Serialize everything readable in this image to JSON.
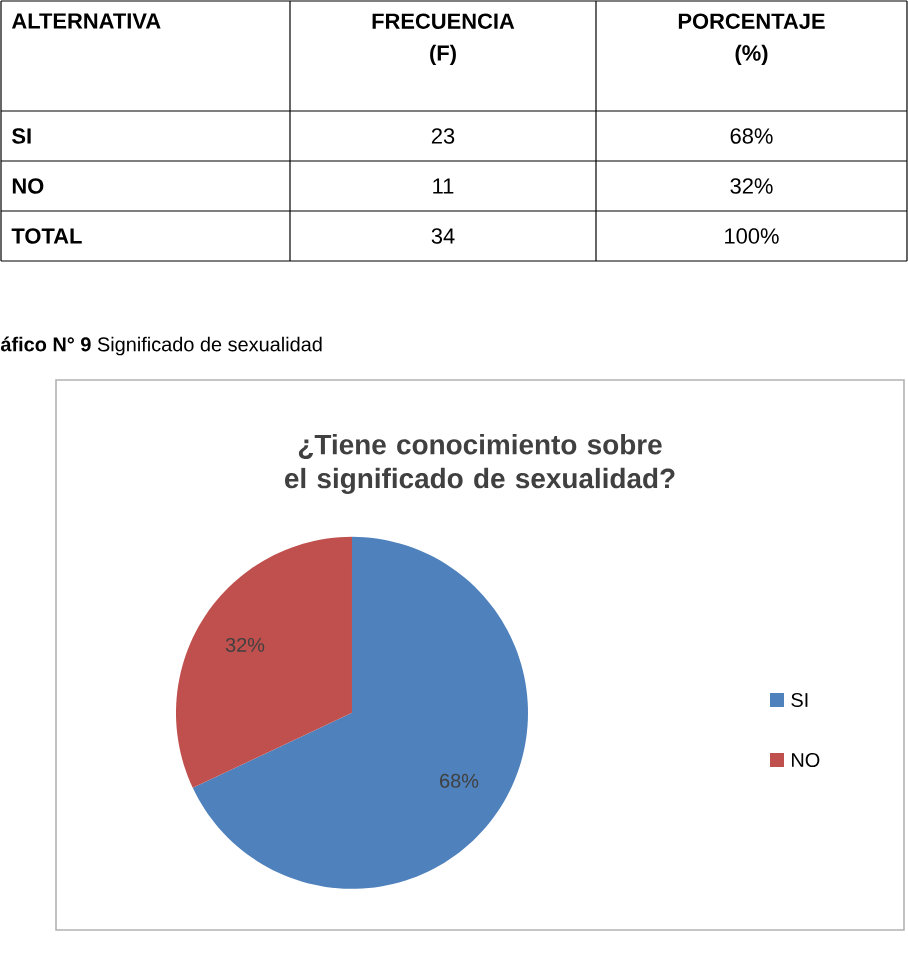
{
  "chart_data": {
    "type": "pie",
    "title": "¿Tiene conocimiento sobre el significado de sexualidad?",
    "categories": [
      "SI",
      "NO"
    ],
    "values": [
      68,
      32
    ],
    "colors": [
      "#4f81bd",
      "#c0504d"
    ],
    "value_labels": [
      "68%",
      "32%"
    ],
    "legend": "right",
    "annotations": [
      "**áfico N° 9**  Significado de sexualidad",
      "ALTERNATIVA",
      "FRECUENCIA (F)",
      "PORCENTAJE (%)",
      "SI",
      "23",
      "68%",
      "NO",
      "11",
      "32%",
      "TOTAL",
      "34",
      "100%"
    ]
  }
}
